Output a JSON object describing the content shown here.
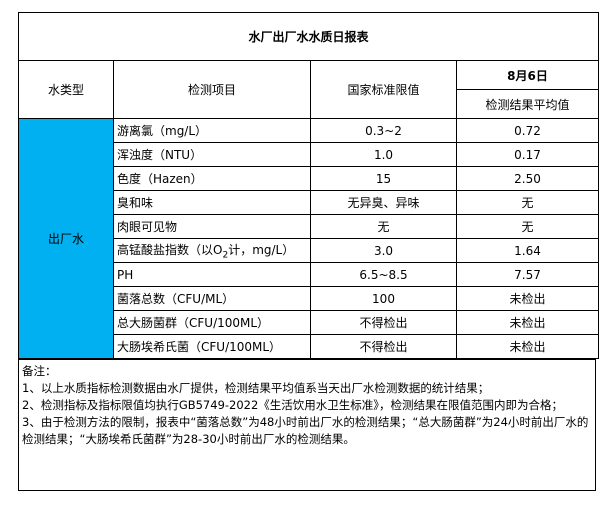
{
  "title": "水厂出厂水水质日报表",
  "headers": {
    "water_type": "水类型",
    "item": "检测项目",
    "standard": "国家标准限值",
    "date": "8月6日",
    "result": "检测结果平均值"
  },
  "water_type": "出厂水",
  "colors": {
    "water_type_fill": "#00b0f0"
  },
  "rows": [
    {
      "item": "游离氯（mg/L）",
      "standard": "0.3~2",
      "result": "0.72"
    },
    {
      "item": "浑浊度（NTU）",
      "standard": "1.0",
      "result": "0.17"
    },
    {
      "item": "色度（Hazen）",
      "standard": "15",
      "result": "2.50"
    },
    {
      "item": "臭和味",
      "standard": "无异臭、异味",
      "result": "无"
    },
    {
      "item": "肉眼可见物",
      "standard": "无",
      "result": "无"
    },
    {
      "item_pre": "高锰酸盐指数（以O",
      "item_sub": "2",
      "item_post": "计，mg/L）",
      "standard": "3.0",
      "result": "1.64"
    },
    {
      "item": "PH",
      "standard": "6.5~8.5",
      "result": "7.57"
    },
    {
      "item": "菌落总数（CFU/ML）",
      "standard": "100",
      "result": "未检出"
    },
    {
      "item": "总大肠菌群（CFU/100ML）",
      "standard": "不得检出",
      "result": "未检出"
    },
    {
      "item": "大肠埃希氏菌（CFU/100ML）",
      "standard": "不得检出",
      "result": "未检出"
    }
  ],
  "notes": {
    "label": "备注：",
    "lines": [
      "1、以上水质指标检测数据由水厂提供，检测结果平均值系当天出厂水检测数据的统计结果；",
      "2、检测指标及指标限值均执行GB5749-2022《生活饮用水卫生标准》，检测结果在限值范围内即为合格；",
      "3、由于检测方法的限制，报表中“菌落总数”为48小时前出厂水的检测结果；“总大肠菌群”为24小时前出厂水的检测结果；“大肠埃希氏菌群”为28-30小时前出厂水的检测结果。"
    ]
  }
}
